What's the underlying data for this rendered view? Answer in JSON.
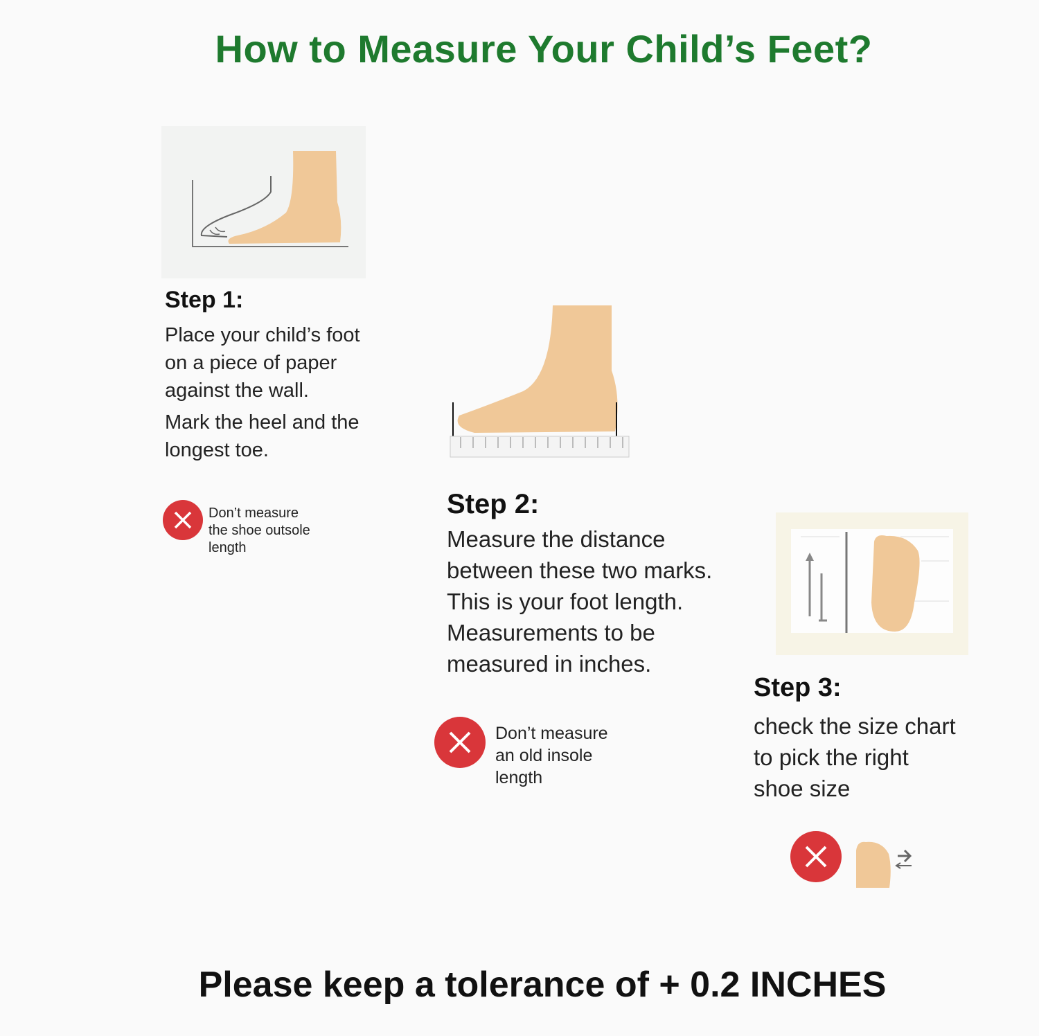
{
  "title": "How to Measure Your Child’s Feet?",
  "colors": {
    "title": "#1e7a2e",
    "warning": "#d9363a",
    "skin": "#f0c898"
  },
  "steps": [
    {
      "heading": "Step 1:",
      "lines": [
        "Place your child’s foot",
        "on a piece of paper",
        "against the wall.",
        "Mark the heel and the",
        "longest toe."
      ],
      "warning": {
        "icon": "x-circle-icon",
        "lines": [
          "Don’t measure",
          "the shoe outsole",
          "length"
        ]
      }
    },
    {
      "heading": "Step 2:",
      "lines": [
        "Measure the distance",
        "between these two marks.",
        "This is your foot length.",
        "Measurements to be",
        "measured in inches."
      ],
      "warning": {
        "icon": "x-circle-icon",
        "lines": [
          "Don’t measure",
          "an old insole",
          "length"
        ]
      }
    },
    {
      "heading": "Step 3:",
      "lines": [
        "check the size chart",
        "to pick the right",
        "shoe size"
      ],
      "warning": {
        "icon": "x-circle-icon"
      }
    }
  ],
  "footer": "Please keep a tolerance of + 0.2 INCHES"
}
